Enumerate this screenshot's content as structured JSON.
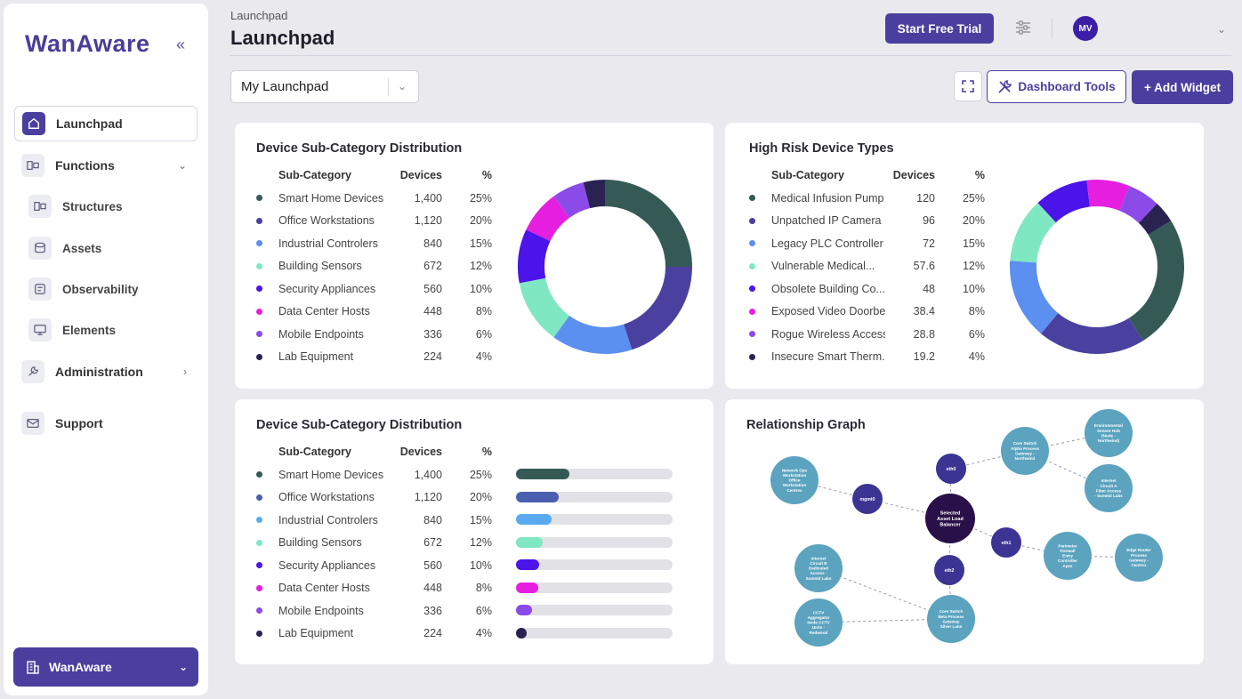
{
  "app": {
    "logo": "WanAware",
    "org_name": "WanAware"
  },
  "sidebar": {
    "items": [
      {
        "label": "Launchpad",
        "icon": "home-icon"
      },
      {
        "label": "Functions",
        "icon": "functions-icon"
      },
      {
        "label": "Structures",
        "icon": "structures-icon"
      },
      {
        "label": "Assets",
        "icon": "assets-icon"
      },
      {
        "label": "Observability",
        "icon": "observability-icon"
      },
      {
        "label": "Elements",
        "icon": "monitor-icon"
      },
      {
        "label": "Administration",
        "icon": "wrench-icon"
      },
      {
        "label": "Support",
        "icon": "mail-icon"
      }
    ]
  },
  "header": {
    "breadcrumb": "Launchpad",
    "title": "Launchpad",
    "trial_label": "Start Free Trial",
    "avatar_initials": "MV"
  },
  "toolbar": {
    "launchpad_select": "My Launchpad",
    "tools_label": "Dashboard Tools",
    "add_label": "+ Add Widget"
  },
  "colors": {
    "accent": "#4a3f9e"
  },
  "widgets": {
    "donut1": {
      "title": "Device Sub-Category Distribution",
      "col_sub": "Sub-Category",
      "col_devices": "Devices",
      "col_pct": "%",
      "rows": [
        {
          "name": "Smart Home Devices",
          "devices": "1,400",
          "pct": "25%",
          "color": "#355a55"
        },
        {
          "name": "Office Workstations",
          "devices": "1,120",
          "pct": "20%",
          "color": "#4a40a0"
        },
        {
          "name": "Industrial Controlers",
          "devices": "840",
          "pct": "15%",
          "color": "#5b8ff0"
        },
        {
          "name": "Building Sensors",
          "devices": "672",
          "pct": "12%",
          "color": "#7fe8c2"
        },
        {
          "name": "Security Appliances",
          "devices": "560",
          "pct": "10%",
          "color": "#4b14e8"
        },
        {
          "name": "Data Center Hosts",
          "devices": "448",
          "pct": "8%",
          "color": "#e61ee0"
        },
        {
          "name": "Mobile Endpoints",
          "devices": "336",
          "pct": "6%",
          "color": "#8b4be8"
        },
        {
          "name": "Lab Equipment",
          "devices": "224",
          "pct": "4%",
          "color": "#2a2250"
        }
      ]
    },
    "donut2": {
      "title": "High Risk Device Types",
      "col_sub": "Sub-Category",
      "col_devices": "Devices",
      "col_pct": "%",
      "rows": [
        {
          "name": "Medical Infusion Pump",
          "devices": "120",
          "pct": "25%",
          "color": "#355a55"
        },
        {
          "name": "Unpatched IP Camera",
          "devices": "96",
          "pct": "20%",
          "color": "#4a40a0"
        },
        {
          "name": "Legacy PLC Controller",
          "devices": "72",
          "pct": "15%",
          "color": "#5b8ff0"
        },
        {
          "name": "Vulnerable Medical...",
          "devices": "57.6",
          "pct": "12%",
          "color": "#7fe8c2"
        },
        {
          "name": "Obsolete Building Co...",
          "devices": "48",
          "pct": "10%",
          "color": "#4b14e8"
        },
        {
          "name": "Exposed Video Doorbell",
          "devices": "38.4",
          "pct": "8%",
          "color": "#e61ee0"
        },
        {
          "name": "Rogue Wireless Access...",
          "devices": "28.8",
          "pct": "6%",
          "color": "#8b4be8"
        },
        {
          "name": "Insecure Smart Therm...",
          "devices": "19.2",
          "pct": "4%",
          "color": "#2a2250"
        }
      ]
    },
    "bars": {
      "title": "Device Sub-Category Distribution",
      "col_sub": "Sub-Category",
      "col_devices": "Devices",
      "col_pct": "%",
      "rows": [
        {
          "name": "Smart Home Devices",
          "devices": "1,400",
          "pct": "25%",
          "value": 0.34,
          "color": "#355a55"
        },
        {
          "name": "Office Workstations",
          "devices": "1,120",
          "pct": "20%",
          "value": 0.27,
          "color": "#4a5fb0"
        },
        {
          "name": "Industrial Controlers",
          "devices": "840",
          "pct": "15%",
          "value": 0.23,
          "color": "#5aaaf0"
        },
        {
          "name": "Building Sensors",
          "devices": "672",
          "pct": "12%",
          "value": 0.17,
          "color": "#7fe8c2"
        },
        {
          "name": "Security Appliances",
          "devices": "560",
          "pct": "10%",
          "value": 0.15,
          "color": "#4b14e8"
        },
        {
          "name": "Data Center Hosts",
          "devices": "448",
          "pct": "8%",
          "value": 0.14,
          "color": "#e61ee0"
        },
        {
          "name": "Mobile Endpoints",
          "devices": "336",
          "pct": "6%",
          "value": 0.1,
          "color": "#8b4be8"
        },
        {
          "name": "Lab Equipment",
          "devices": "224",
          "pct": "4%",
          "value": 0.07,
          "color": "#2a2250"
        }
      ]
    },
    "graph": {
      "title": "Relationship Graph",
      "nodes": [
        {
          "id": "center",
          "label": "Selected Asset Load Balancer"
        },
        {
          "id": "mgmt0",
          "label": "mgmt0"
        },
        {
          "id": "eth0",
          "label": "eth0"
        },
        {
          "id": "eth1",
          "label": "eth1"
        },
        {
          "id": "eth2",
          "label": "eth2"
        },
        {
          "id": "netops",
          "label": "Network Ops Workstation Office Workstation Centrex"
        },
        {
          "id": "coreA",
          "label": "Core Switch Alpha Process Gateway - Northwind"
        },
        {
          "id": "envhub",
          "label": "Environmental Sensor Hub (Node - Northwind)"
        },
        {
          "id": "circA",
          "label": "Internet Circuit A Fiber Access - Summit Labs"
        },
        {
          "id": "perim",
          "label": "Perimeter Firewall Entry Controller Apex"
        },
        {
          "id": "edge",
          "label": "Edge Router Process Gateway - Centrex"
        },
        {
          "id": "circB",
          "label": "Internet Circuit B Dedicated Access - Summit Labs"
        },
        {
          "id": "cctv",
          "label": "CCTV Aggregator Node CCTV Units - Redwood"
        },
        {
          "id": "coreB",
          "label": "Core Switch Beta Process Gateway Silver Lane"
        }
      ]
    }
  }
}
